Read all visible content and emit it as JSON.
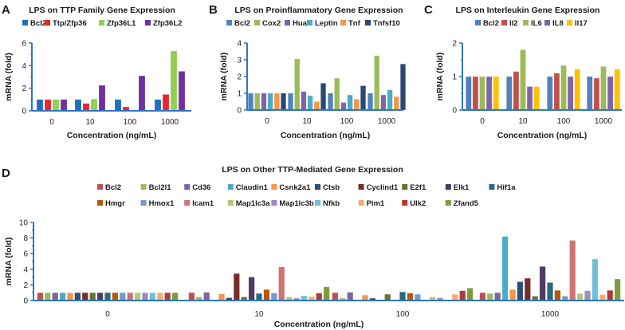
{
  "chart_data": [
    {
      "panel_label": "A",
      "type": "bar",
      "title": "LPS on TTP Family Gene Expression",
      "xlabel": "Concentration (ng/mL)",
      "ylabel": "mRNA (fold)",
      "ylim": [
        0,
        6
      ],
      "yticks": [
        0,
        2,
        4,
        6
      ],
      "legend_position": "top",
      "categories": [
        "0",
        "10",
        "100",
        "1000"
      ],
      "series": [
        {
          "name": "Bcl2",
          "color": "#1f6fc0",
          "values": [
            1,
            1,
            1,
            1
          ]
        },
        {
          "name": "Ttp/Zfp36",
          "color": "#e8262b",
          "values": [
            1,
            0.65,
            0.35,
            1.45
          ]
        },
        {
          "name": "Zfp36L1",
          "color": "#92d050",
          "values": [
            1,
            1.05,
            0,
            5.3
          ]
        },
        {
          "name": "Zfp36L2",
          "color": "#7030a0",
          "values": [
            1,
            2.25,
            3.1,
            3.5
          ]
        }
      ]
    },
    {
      "panel_label": "B",
      "type": "bar",
      "title": "LPS on Proinflammatory Gene Expression",
      "xlabel": "Concentration (ng/mL)",
      "ylabel": "mRNA (fold)",
      "ylim": [
        0,
        4
      ],
      "yticks": [
        0,
        1,
        2,
        3,
        4
      ],
      "legend_position": "top",
      "categories": [
        "0",
        "10",
        "100",
        "1000"
      ],
      "series": [
        {
          "name": "Bcl2",
          "color": "#4f81bd",
          "values": [
            1,
            1,
            1,
            1
          ]
        },
        {
          "name": "Cox2",
          "color": "#9bbb59",
          "values": [
            1,
            3.05,
            1.9,
            3.25
          ]
        },
        {
          "name": "Hua",
          "color": "#8064a2",
          "values": [
            1,
            1.1,
            0.45,
            0.9
          ]
        },
        {
          "name": "Leptin",
          "color": "#4bacc6",
          "values": [
            1,
            0.85,
            0.9,
            1.2
          ]
        },
        {
          "name": "Tnf",
          "color": "#f79646",
          "values": [
            1,
            0.5,
            0.65,
            0.8
          ]
        },
        {
          "name": "Tnfsf10",
          "color": "#2c4770",
          "values": [
            1,
            1.6,
            1.45,
            2.75
          ]
        }
      ]
    },
    {
      "panel_label": "C",
      "type": "bar",
      "title": "LPS on Interleukin Gene Expression",
      "xlabel": "Concentration (ng/mL)",
      "ylabel": "mRNA (fold)",
      "ylim": [
        0,
        2
      ],
      "yticks": [
        0,
        1,
        2
      ],
      "legend_position": "top",
      "categories": [
        "0",
        "10",
        "100",
        "1000"
      ],
      "series": [
        {
          "name": "Bcl2",
          "color": "#4f81bd",
          "values": [
            1,
            1,
            1,
            1
          ]
        },
        {
          "name": "Il2",
          "color": "#c0504d",
          "values": [
            1,
            1.15,
            1.1,
            0.95
          ]
        },
        {
          "name": "IL6",
          "color": "#9bbb59",
          "values": [
            1,
            1.8,
            1.33,
            1.3
          ]
        },
        {
          "name": "IL8",
          "color": "#8064a2",
          "values": [
            1,
            0.7,
            1,
            1
          ]
        },
        {
          "name": "Il17",
          "color": "#ffc000",
          "values": [
            1,
            0.7,
            1.22,
            1.22
          ]
        }
      ]
    },
    {
      "panel_label": "D",
      "type": "bar",
      "title": "LPS on Other TTP-Mediated Gene Expression",
      "xlabel": "Concentration (ng/mL)",
      "ylabel": "mRNA (fold)",
      "ylim": [
        0,
        10
      ],
      "yticks": [
        0,
        2,
        4,
        6,
        8,
        10
      ],
      "legend_position": "top",
      "categories": [
        "0",
        "10",
        "100",
        "1000"
      ],
      "series": [
        {
          "name": "Bcl2",
          "color": "#c0504d",
          "values": [
            1,
            1,
            1,
            1
          ]
        },
        {
          "name": "Bcl2l1",
          "color": "#9bbb59",
          "values": [
            1,
            0.45,
            0.3,
            0.9
          ]
        },
        {
          "name": "Cd36",
          "color": "#8064a2",
          "values": [
            1,
            1.05,
            1.05,
            1
          ]
        },
        {
          "name": "Claudin1",
          "color": "#4bacc6",
          "values": [
            1,
            0,
            0,
            8.2
          ]
        },
        {
          "name": "Csnk2a1",
          "color": "#f79646",
          "values": [
            1,
            0.85,
            0.7,
            1.4
          ]
        },
        {
          "name": "Ctsb",
          "color": "#2c4d75",
          "values": [
            1,
            0.35,
            0.3,
            2.4
          ]
        },
        {
          "name": "Cyclind1",
          "color": "#772c2a",
          "values": [
            1,
            3.45,
            0,
            2.85
          ]
        },
        {
          "name": "E2f1",
          "color": "#5f7530",
          "values": [
            1,
            0.45,
            0.8,
            0.55
          ]
        },
        {
          "name": "Elk1",
          "color": "#4d3b62",
          "values": [
            1,
            3.0,
            0,
            4.35
          ]
        },
        {
          "name": "Hif1a",
          "color": "#276a7c",
          "values": [
            1,
            0.9,
            1.1,
            2.3
          ]
        },
        {
          "name": "Hmgr",
          "color": "#b65708",
          "values": [
            1,
            1.4,
            0.95,
            1.3
          ]
        },
        {
          "name": "Hmox1",
          "color": "#729aca",
          "values": [
            1,
            0.95,
            0.8,
            0.55
          ]
        },
        {
          "name": "Icam1",
          "color": "#cd7371",
          "values": [
            1,
            4.3,
            0,
            7.7
          ]
        },
        {
          "name": "Map1lc3a",
          "color": "#afc97a",
          "values": [
            1,
            0.45,
            0.45,
            0.9
          ]
        },
        {
          "name": "Map1lc3b",
          "color": "#a08bbd",
          "values": [
            1,
            0.3,
            0.35,
            1.25
          ]
        },
        {
          "name": "Nfkb",
          "color": "#6fc0d7",
          "values": [
            1,
            0.6,
            0,
            5.3
          ]
        },
        {
          "name": "Pim1",
          "color": "#f9ab6c",
          "values": [
            1,
            0.5,
            0.8,
            0.75
          ]
        },
        {
          "name": "Ulk2",
          "color": "#b23a3a",
          "values": [
            1,
            0.95,
            1.25,
            1.3
          ]
        },
        {
          "name": "Zfand5",
          "color": "#7e9c3d",
          "values": [
            1,
            1.75,
            1.6,
            2.75
          ]
        }
      ]
    }
  ]
}
